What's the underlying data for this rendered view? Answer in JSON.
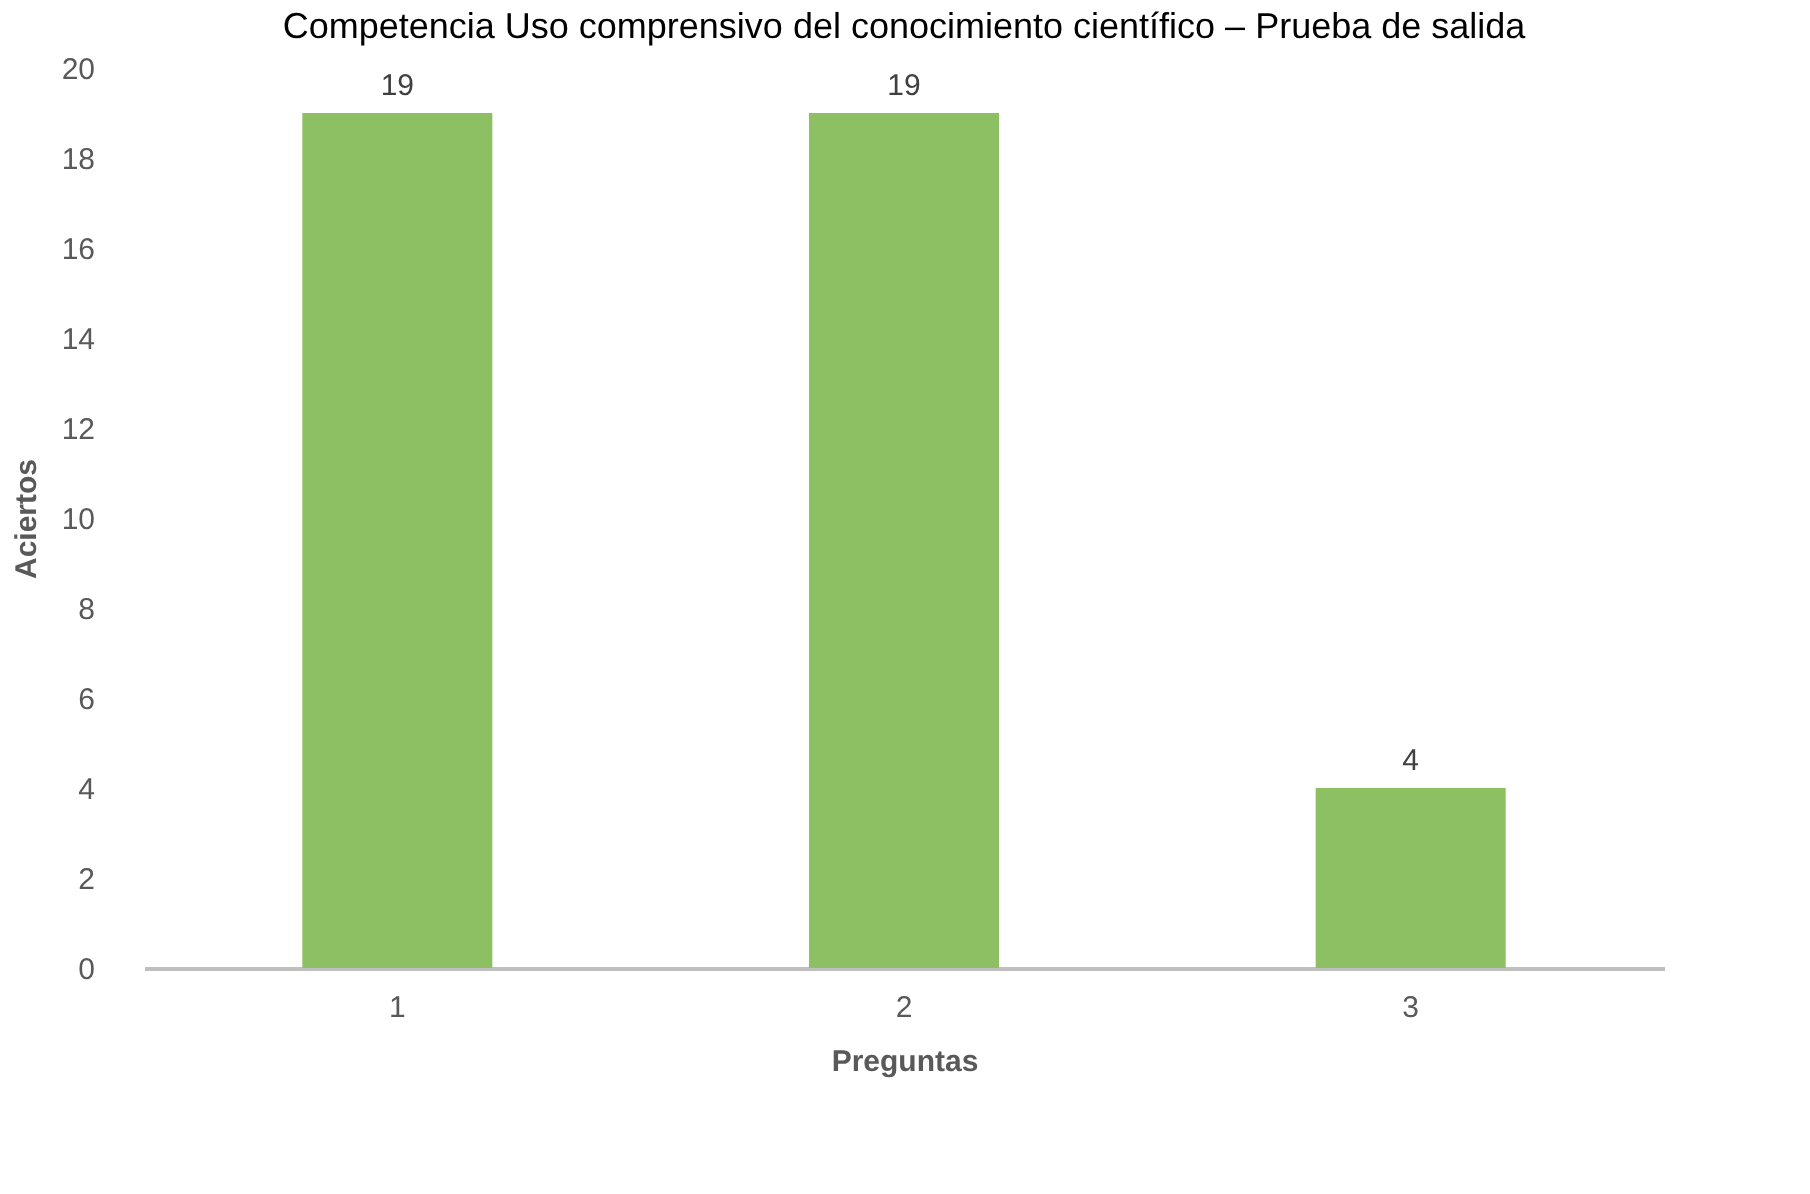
{
  "chart_data": {
    "type": "bar",
    "title": "Competencia Uso comprensivo del conocimiento científico – Prueba de salida",
    "xlabel": "Preguntas",
    "ylabel": "Aciertos",
    "categories": [
      "1",
      "2",
      "3"
    ],
    "values": [
      19,
      19,
      4
    ],
    "color": "#8cc063",
    "ylim": [
      0,
      20
    ],
    "yticks": [
      0,
      2,
      4,
      6,
      8,
      10,
      12,
      14,
      16,
      18,
      20
    ],
    "grid": false,
    "data_labels": true
  }
}
